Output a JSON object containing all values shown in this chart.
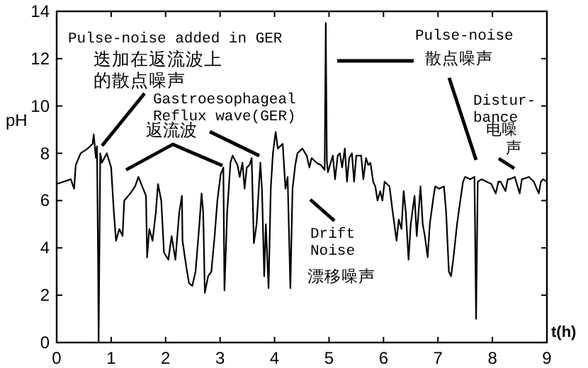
{
  "chart_data": {
    "type": "line",
    "xlabel": "t(h)",
    "ylabel": "pH",
    "xlim": [
      0,
      9
    ],
    "ylim": [
      0,
      14
    ],
    "xticks": [
      0,
      1,
      2,
      3,
      4,
      5,
      6,
      7,
      8,
      9
    ],
    "yticks": [
      0,
      2,
      4,
      6,
      8,
      10,
      12,
      14
    ],
    "grid": false,
    "x": [
      0,
      0.26,
      0.32,
      0.35,
      0.44,
      0.57,
      0.66,
      0.68,
      0.72,
      0.74,
      0.76,
      0.77,
      0.8,
      0.83,
      0.92,
      1.0,
      1.05,
      1.09,
      1.15,
      1.21,
      1.24,
      1.35,
      1.44,
      1.5,
      1.57,
      1.64,
      1.66,
      1.7,
      1.76,
      1.82,
      1.86,
      1.92,
      1.97,
      2.05,
      2.11,
      2.18,
      2.25,
      2.3,
      2.31,
      2.38,
      2.43,
      2.49,
      2.55,
      2.62,
      2.66,
      2.69,
      2.72,
      2.78,
      2.84,
      2.9,
      2.95,
      3.01,
      3.06,
      3.08,
      3.13,
      3.19,
      3.23,
      3.32,
      3.36,
      3.41,
      3.45,
      3.49,
      3.54,
      3.58,
      3.62,
      3.67,
      3.71,
      3.74,
      3.77,
      3.81,
      3.84,
      3.89,
      3.93,
      3.97,
      4.02,
      4.06,
      4.15,
      4.2,
      4.24,
      4.29,
      4.33,
      4.38,
      4.42,
      4.51,
      4.59,
      4.64,
      4.68,
      4.77,
      4.85,
      4.92,
      4.94,
      4.96,
      4.98,
      5.03,
      5.07,
      5.11,
      5.16,
      5.2,
      5.24,
      5.29,
      5.33,
      5.37,
      5.42,
      5.46,
      5.5,
      5.59,
      5.63,
      5.68,
      5.72,
      5.76,
      5.81,
      5.85,
      5.89,
      5.94,
      5.98,
      6.02,
      6.11,
      6.17,
      6.24,
      6.28,
      6.33,
      6.37,
      6.41,
      6.46,
      6.5,
      6.57,
      6.61,
      6.68,
      6.72,
      6.76,
      6.81,
      6.85,
      6.92,
      6.95,
      7.02,
      7.11,
      7.15,
      7.2,
      7.24,
      7.28,
      7.35,
      7.41,
      7.46,
      7.5,
      7.59,
      7.67,
      7.7,
      7.73,
      7.8,
      7.98,
      8.06,
      8.11,
      8.15,
      8.24,
      8.28,
      8.32,
      8.41,
      8.5,
      8.54,
      8.67,
      8.76,
      8.85,
      8.89,
      8.93,
      9.0
    ],
    "series": [
      {
        "color": "#000000",
        "values": [
          6.7,
          6.9,
          6.5,
          7.5,
          8.0,
          8.2,
          8.4,
          8.8,
          7.8,
          8.3,
          3.5,
          0,
          8.0,
          7.6,
          8.0,
          7.4,
          5.5,
          4.3,
          4.8,
          4.5,
          6.0,
          6.3,
          6.6,
          7.0,
          6.6,
          6.2,
          3.6,
          4.8,
          4.3,
          5.5,
          6.7,
          6.0,
          3.8,
          3.5,
          4.5,
          3.5,
          5.5,
          6.2,
          4.3,
          3.2,
          2.5,
          2.4,
          3.0,
          5.0,
          6.3,
          5.5,
          2.1,
          2.8,
          3.0,
          4.5,
          6.0,
          7.1,
          7.4,
          2.2,
          5.5,
          7.6,
          7.9,
          7.5,
          7.0,
          7.6,
          6.5,
          7.4,
          7.5,
          7.8,
          4.2,
          5.0,
          6.5,
          7.6,
          6.4,
          2.8,
          5.0,
          2.3,
          6.5,
          8.0,
          8.9,
          8.2,
          8.4,
          6.5,
          7.0,
          2.3,
          6.5,
          7.5,
          8.0,
          8.2,
          7.9,
          7.4,
          7.8,
          7.6,
          7.5,
          7.3,
          13.5,
          7.7,
          7.2,
          7.6,
          7.9,
          6.9,
          7.9,
          8.0,
          7.4,
          8.2,
          6.8,
          7.8,
          8.0,
          6.8,
          7.9,
          7.9,
          6.9,
          7.8,
          7.5,
          7.6,
          6.8,
          6.6,
          6.0,
          6.4,
          6.0,
          6.8,
          6.6,
          5.5,
          4.3,
          5.2,
          4.8,
          6.4,
          5.5,
          3.5,
          5.0,
          6.2,
          4.5,
          6.6,
          5.0,
          4.5,
          3.6,
          5.0,
          6.2,
          6.6,
          6.5,
          6.6,
          5.5,
          3.0,
          2.8,
          3.5,
          5.0,
          6.0,
          6.8,
          7.0,
          6.9,
          7.0,
          1.0,
          6.8,
          6.9,
          6.7,
          6.3,
          6.8,
          6.8,
          6.4,
          6.9,
          6.9,
          7.0,
          6.3,
          6.9,
          7.0,
          6.8,
          6.3,
          6.8,
          6.9,
          6.8
        ]
      }
    ],
    "annotations": [
      "Pulse-noise added in GER",
      "迭加在返流波上",
      "的散点噪声",
      "Gastroesophageal\nReflux wave(GER)",
      "返流波",
      "Drift\nNoise",
      "漂移噪声",
      "Pulse-noise",
      "散点噪声",
      "Distur-\nbance",
      "电噪",
      "声"
    ]
  }
}
